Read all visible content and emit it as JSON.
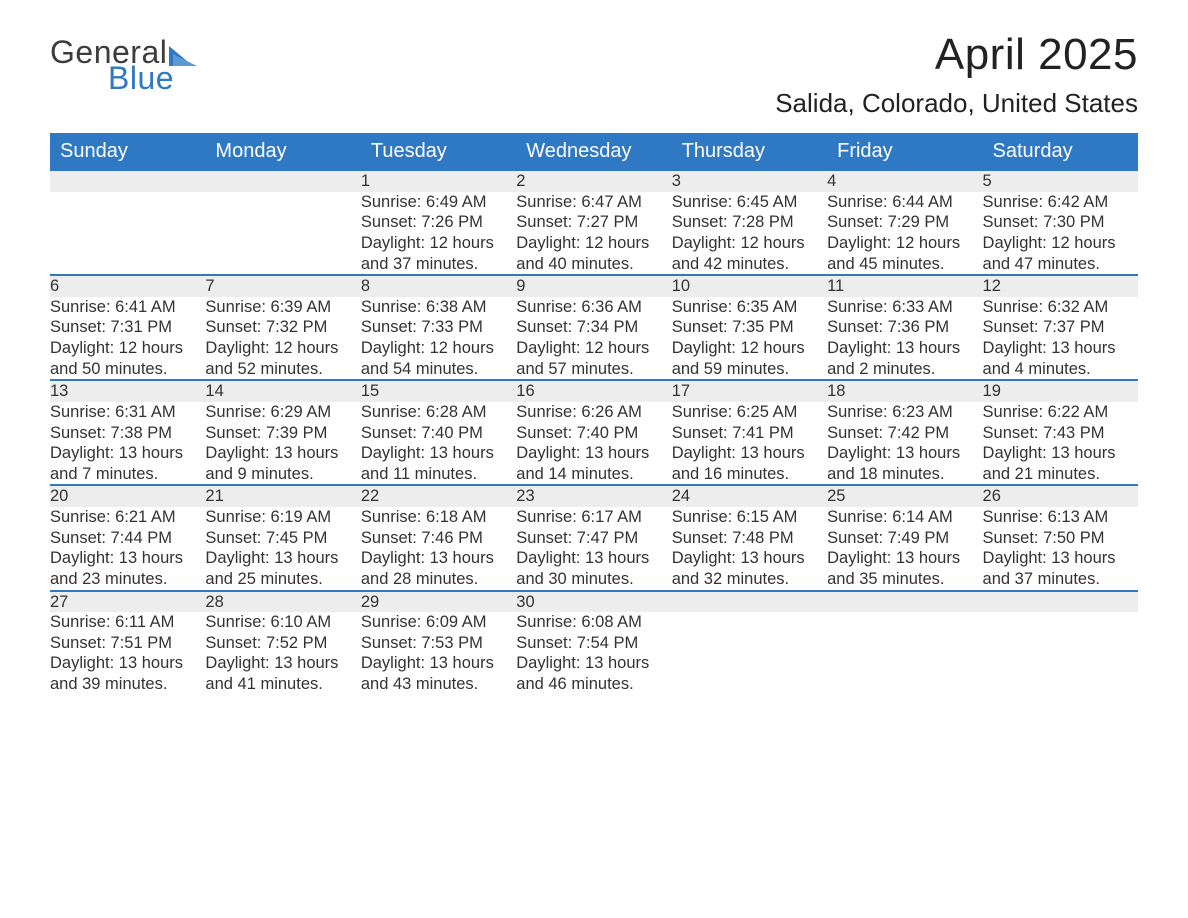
{
  "brand": {
    "word1": "General",
    "word2": "Blue"
  },
  "title": "April 2025",
  "location": "Salida, Colorado, United States",
  "colors": {
    "header_bg": "#2f78c4",
    "header_text": "#ffffff",
    "daynum_bg": "#ededed",
    "daynum_text": "#555555",
    "body_text": "#333333",
    "week_rule": "#2f78c4"
  },
  "day_labels": [
    "Sunday",
    "Monday",
    "Tuesday",
    "Wednesday",
    "Thursday",
    "Friday",
    "Saturday"
  ],
  "weeks": [
    [
      null,
      null,
      {
        "n": "1",
        "sr": "Sunrise: 6:49 AM",
        "ss": "Sunset: 7:26 PM",
        "dl": "Daylight: 12 hours and 37 minutes."
      },
      {
        "n": "2",
        "sr": "Sunrise: 6:47 AM",
        "ss": "Sunset: 7:27 PM",
        "dl": "Daylight: 12 hours and 40 minutes."
      },
      {
        "n": "3",
        "sr": "Sunrise: 6:45 AM",
        "ss": "Sunset: 7:28 PM",
        "dl": "Daylight: 12 hours and 42 minutes."
      },
      {
        "n": "4",
        "sr": "Sunrise: 6:44 AM",
        "ss": "Sunset: 7:29 PM",
        "dl": "Daylight: 12 hours and 45 minutes."
      },
      {
        "n": "5",
        "sr": "Sunrise: 6:42 AM",
        "ss": "Sunset: 7:30 PM",
        "dl": "Daylight: 12 hours and 47 minutes."
      }
    ],
    [
      {
        "n": "6",
        "sr": "Sunrise: 6:41 AM",
        "ss": "Sunset: 7:31 PM",
        "dl": "Daylight: 12 hours and 50 minutes."
      },
      {
        "n": "7",
        "sr": "Sunrise: 6:39 AM",
        "ss": "Sunset: 7:32 PM",
        "dl": "Daylight: 12 hours and 52 minutes."
      },
      {
        "n": "8",
        "sr": "Sunrise: 6:38 AM",
        "ss": "Sunset: 7:33 PM",
        "dl": "Daylight: 12 hours and 54 minutes."
      },
      {
        "n": "9",
        "sr": "Sunrise: 6:36 AM",
        "ss": "Sunset: 7:34 PM",
        "dl": "Daylight: 12 hours and 57 minutes."
      },
      {
        "n": "10",
        "sr": "Sunrise: 6:35 AM",
        "ss": "Sunset: 7:35 PM",
        "dl": "Daylight: 12 hours and 59 minutes."
      },
      {
        "n": "11",
        "sr": "Sunrise: 6:33 AM",
        "ss": "Sunset: 7:36 PM",
        "dl": "Daylight: 13 hours and 2 minutes."
      },
      {
        "n": "12",
        "sr": "Sunrise: 6:32 AM",
        "ss": "Sunset: 7:37 PM",
        "dl": "Daylight: 13 hours and 4 minutes."
      }
    ],
    [
      {
        "n": "13",
        "sr": "Sunrise: 6:31 AM",
        "ss": "Sunset: 7:38 PM",
        "dl": "Daylight: 13 hours and 7 minutes."
      },
      {
        "n": "14",
        "sr": "Sunrise: 6:29 AM",
        "ss": "Sunset: 7:39 PM",
        "dl": "Daylight: 13 hours and 9 minutes."
      },
      {
        "n": "15",
        "sr": "Sunrise: 6:28 AM",
        "ss": "Sunset: 7:40 PM",
        "dl": "Daylight: 13 hours and 11 minutes."
      },
      {
        "n": "16",
        "sr": "Sunrise: 6:26 AM",
        "ss": "Sunset: 7:40 PM",
        "dl": "Daylight: 13 hours and 14 minutes."
      },
      {
        "n": "17",
        "sr": "Sunrise: 6:25 AM",
        "ss": "Sunset: 7:41 PM",
        "dl": "Daylight: 13 hours and 16 minutes."
      },
      {
        "n": "18",
        "sr": "Sunrise: 6:23 AM",
        "ss": "Sunset: 7:42 PM",
        "dl": "Daylight: 13 hours and 18 minutes."
      },
      {
        "n": "19",
        "sr": "Sunrise: 6:22 AM",
        "ss": "Sunset: 7:43 PM",
        "dl": "Daylight: 13 hours and 21 minutes."
      }
    ],
    [
      {
        "n": "20",
        "sr": "Sunrise: 6:21 AM",
        "ss": "Sunset: 7:44 PM",
        "dl": "Daylight: 13 hours and 23 minutes."
      },
      {
        "n": "21",
        "sr": "Sunrise: 6:19 AM",
        "ss": "Sunset: 7:45 PM",
        "dl": "Daylight: 13 hours and 25 minutes."
      },
      {
        "n": "22",
        "sr": "Sunrise: 6:18 AM",
        "ss": "Sunset: 7:46 PM",
        "dl": "Daylight: 13 hours and 28 minutes."
      },
      {
        "n": "23",
        "sr": "Sunrise: 6:17 AM",
        "ss": "Sunset: 7:47 PM",
        "dl": "Daylight: 13 hours and 30 minutes."
      },
      {
        "n": "24",
        "sr": "Sunrise: 6:15 AM",
        "ss": "Sunset: 7:48 PM",
        "dl": "Daylight: 13 hours and 32 minutes."
      },
      {
        "n": "25",
        "sr": "Sunrise: 6:14 AM",
        "ss": "Sunset: 7:49 PM",
        "dl": "Daylight: 13 hours and 35 minutes."
      },
      {
        "n": "26",
        "sr": "Sunrise: 6:13 AM",
        "ss": "Sunset: 7:50 PM",
        "dl": "Daylight: 13 hours and 37 minutes."
      }
    ],
    [
      {
        "n": "27",
        "sr": "Sunrise: 6:11 AM",
        "ss": "Sunset: 7:51 PM",
        "dl": "Daylight: 13 hours and 39 minutes."
      },
      {
        "n": "28",
        "sr": "Sunrise: 6:10 AM",
        "ss": "Sunset: 7:52 PM",
        "dl": "Daylight: 13 hours and 41 minutes."
      },
      {
        "n": "29",
        "sr": "Sunrise: 6:09 AM",
        "ss": "Sunset: 7:53 PM",
        "dl": "Daylight: 13 hours and 43 minutes."
      },
      {
        "n": "30",
        "sr": "Sunrise: 6:08 AM",
        "ss": "Sunset: 7:54 PM",
        "dl": "Daylight: 13 hours and 46 minutes."
      },
      null,
      null,
      null
    ]
  ]
}
